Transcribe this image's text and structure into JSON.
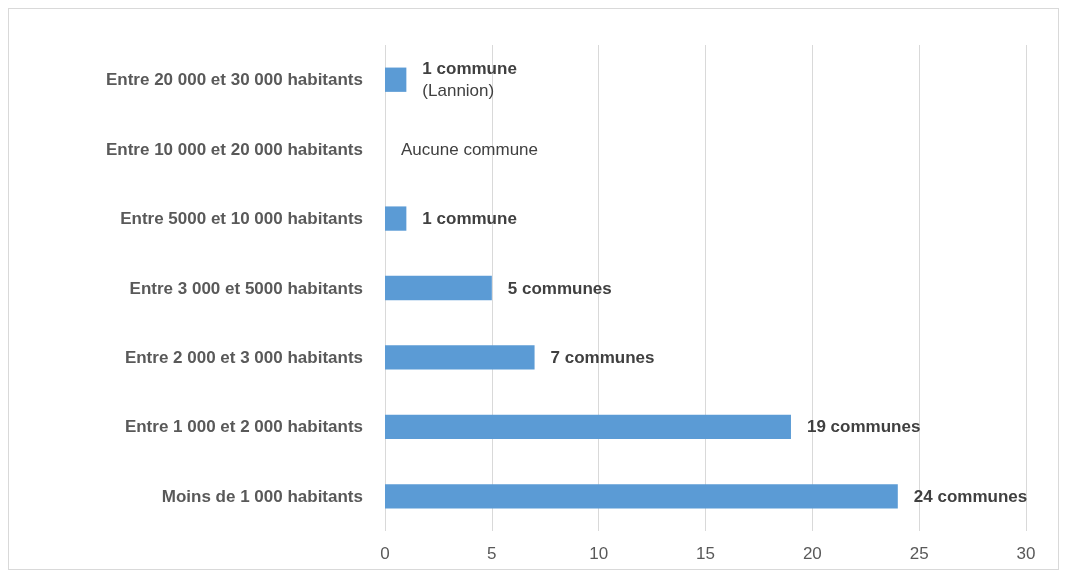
{
  "chart_data": {
    "type": "bar",
    "orientation": "horizontal",
    "categories": [
      "Entre 20 000 et 30 000 habitants",
      "Entre 10 000 et 20 000 habitants",
      "Entre 5000 et 10 000 habitants",
      "Entre 3 000 et 5000 habitants",
      "Entre 2 000 et 3 000 habitants",
      "Entre 1 000 et 2 000 habitants",
      "Moins de 1 000 habitants"
    ],
    "values": [
      1,
      0,
      1,
      5,
      7,
      19,
      24
    ],
    "value_labels": [
      "1 commune\n(Lannion)",
      "Aucune commune",
      "1 commune",
      "5 communes",
      "7 communes",
      "19 communes",
      "24 communes"
    ],
    "color": "#5b9bd5",
    "xlim": [
      0,
      30
    ],
    "xticks": [
      0,
      5,
      10,
      15,
      20,
      25,
      30
    ],
    "grid": "x"
  }
}
